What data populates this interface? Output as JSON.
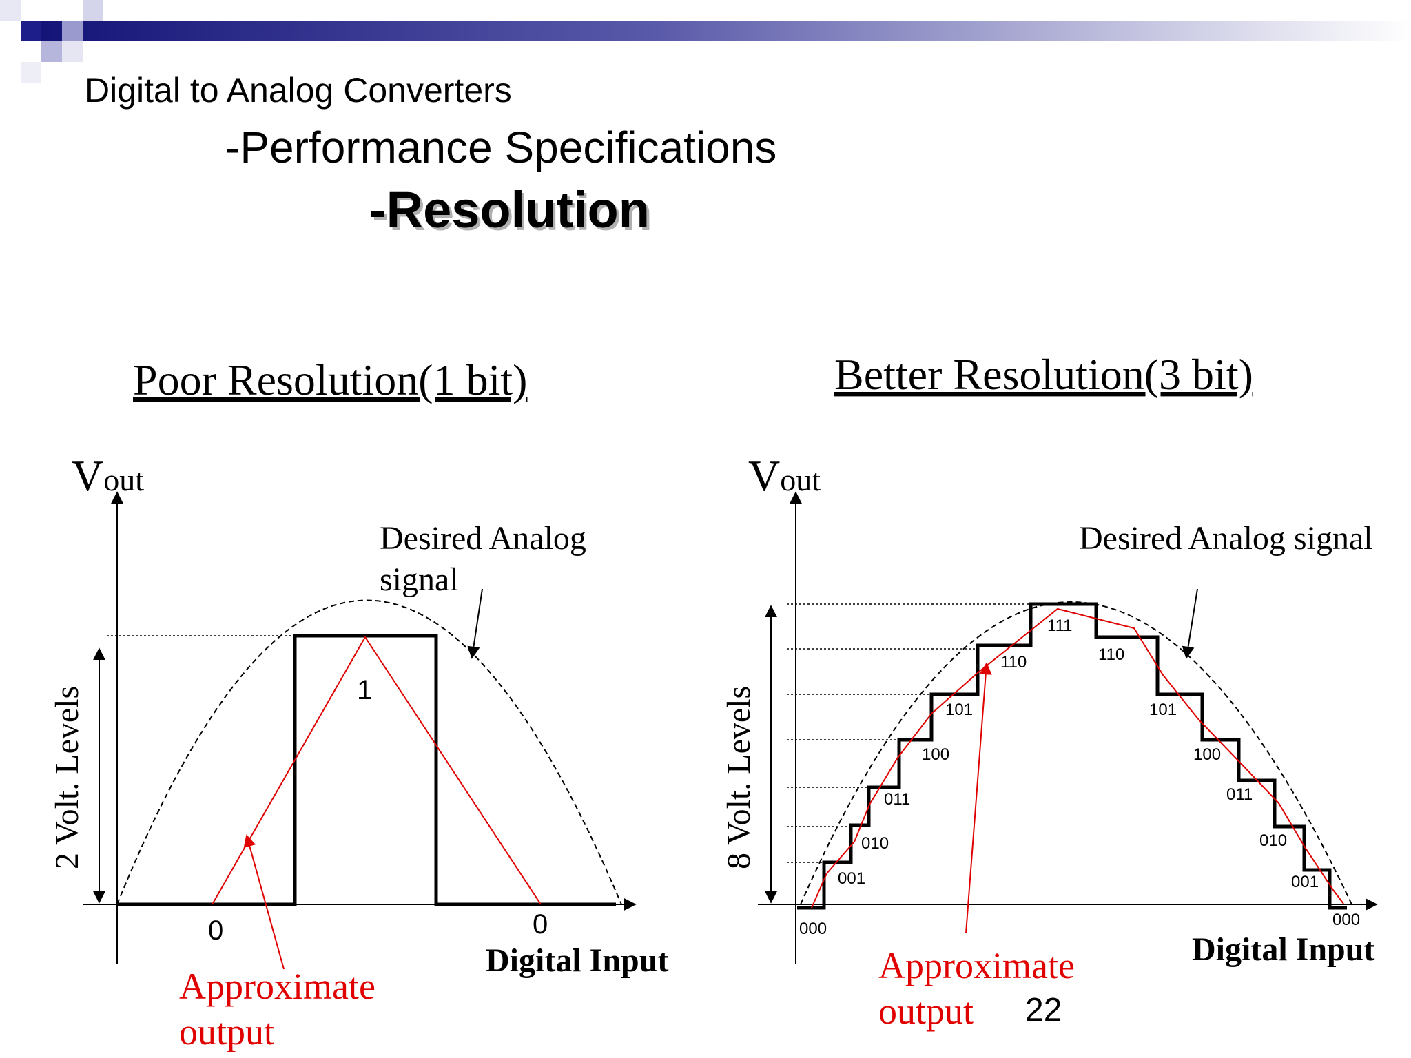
{
  "slide": {
    "title": "Digital to Analog Converters",
    "subtitle": "-Performance Specifications",
    "heading": "-Resolution",
    "page_number": "22"
  },
  "left_diagram": {
    "title": "Poor Resolution(1 bit)",
    "vout_v": "V",
    "vout_sub": "out",
    "y_label": "2 Volt. Levels",
    "x_label": "Digital Input",
    "desired_line1": "Desired Analog",
    "desired_line2": "signal",
    "approx_line1": "Approximate",
    "approx_line2": "output",
    "codes": [
      "0",
      "1",
      "0"
    ]
  },
  "right_diagram": {
    "title": "Better Resolution(3 bit)",
    "vout_v": "V",
    "vout_sub": "out",
    "y_label": "8 Volt. Levels",
    "x_label": "Digital Input",
    "desired": "Desired Analog signal",
    "approx_line1": "Approximate",
    "approx_line2": "output",
    "codes_rising": [
      "000",
      "001",
      "010",
      "011",
      "100",
      "101",
      "110",
      "111"
    ],
    "codes_falling": [
      "110",
      "101",
      "100",
      "011",
      "010",
      "001",
      "000"
    ]
  },
  "colors": {
    "signal_black": "#000000",
    "approx_red": "#e00000",
    "banner_dark": "#1e1e8a",
    "banner_light": "#ffffff"
  }
}
